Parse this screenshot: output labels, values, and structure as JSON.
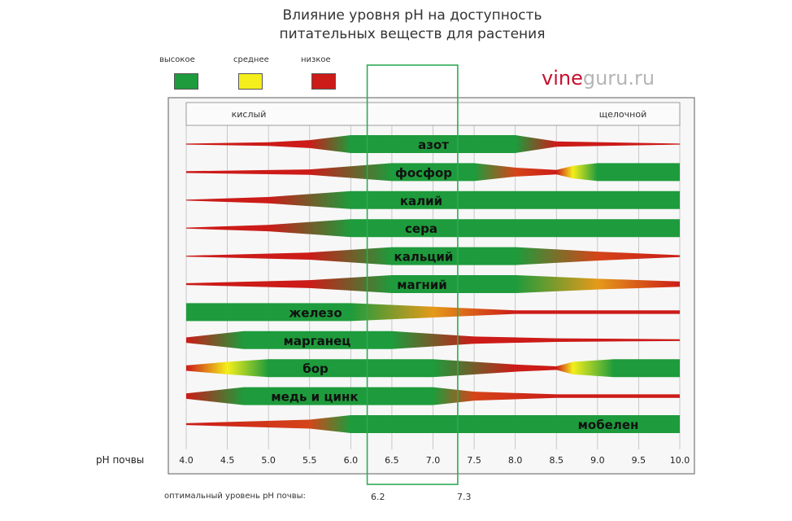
{
  "title_lines": [
    "Влияние уровня pH на доступность",
    "питательных веществ для растения"
  ],
  "watermark": {
    "part1": "vine",
    "part2": "guru.ru"
  },
  "legend": [
    {
      "label": "высокое",
      "color": "#1e9b3c"
    },
    {
      "label": "среднее",
      "color": "#f4ee1c"
    },
    {
      "label": "низкое",
      "color": "#cc1b18"
    }
  ],
  "optimum": {
    "label": "оптимальный уровень pH почвы:",
    "low_label": "6.2",
    "high_label": "7.3"
  },
  "chart_data": {
    "type": "band",
    "xlabel": "pH почвы",
    "x_ticks": [
      "4.0",
      "4.5",
      "5.0",
      "5.5",
      "6.0",
      "6.5",
      "7.0",
      "7.5",
      "8.0",
      "8.5",
      "9.0",
      "9.5",
      "10.0"
    ],
    "xlim": [
      4.0,
      10.0
    ],
    "zones": {
      "left": "кислый",
      "right": "щелочной"
    },
    "optimal_range": [
      6.2,
      7.3
    ],
    "colors": {
      "high": "#1e9b3c",
      "medium": "#f4ee1c",
      "low": "#cc1b18"
    },
    "series": [
      {
        "name": "азот",
        "profile": [
          [
            4.0,
            0.05
          ],
          [
            5.0,
            0.2
          ],
          [
            5.5,
            0.45
          ],
          [
            6.0,
            1
          ],
          [
            8.0,
            1
          ],
          [
            8.5,
            0.3
          ],
          [
            10.0,
            0.05
          ]
        ]
      },
      {
        "name": "фосфор",
        "profile": [
          [
            4.0,
            0.1
          ],
          [
            5.5,
            0.3
          ],
          [
            6.5,
            1
          ],
          [
            7.5,
            1
          ],
          [
            8.0,
            0.5
          ],
          [
            8.5,
            0.25
          ],
          [
            8.7,
            0.7
          ],
          [
            9.0,
            1
          ],
          [
            10.0,
            1
          ]
        ]
      },
      {
        "name": "калий",
        "profile": [
          [
            4.0,
            0.05
          ],
          [
            5.0,
            0.35
          ],
          [
            6.0,
            1
          ],
          [
            10.0,
            1
          ]
        ]
      },
      {
        "name": "сера",
        "profile": [
          [
            4.0,
            0.05
          ],
          [
            5.0,
            0.35
          ],
          [
            6.0,
            1
          ],
          [
            10.0,
            1
          ]
        ]
      },
      {
        "name": "кальций",
        "profile": [
          [
            4.0,
            0.05
          ],
          [
            5.5,
            0.4
          ],
          [
            6.5,
            1
          ],
          [
            8.0,
            1
          ],
          [
            9.0,
            0.5
          ],
          [
            10.0,
            0.1
          ]
        ]
      },
      {
        "name": "магний",
        "profile": [
          [
            4.0,
            0.1
          ],
          [
            5.5,
            0.45
          ],
          [
            6.5,
            1
          ],
          [
            8.0,
            1
          ],
          [
            9.0,
            0.6
          ],
          [
            10.0,
            0.3
          ]
        ]
      },
      {
        "name": "железо",
        "profile": [
          [
            4.0,
            1
          ],
          [
            6.0,
            1
          ],
          [
            7.0,
            0.6
          ],
          [
            8.0,
            0.2
          ],
          [
            10.0,
            0.2
          ]
        ]
      },
      {
        "name": "марганец",
        "profile": [
          [
            4.0,
            0.3
          ],
          [
            4.7,
            1
          ],
          [
            6.5,
            1
          ],
          [
            7.5,
            0.4
          ],
          [
            8.5,
            0.2
          ],
          [
            10.0,
            0.1
          ]
        ]
      },
      {
        "name": "бор",
        "profile": [
          [
            4.0,
            0.3
          ],
          [
            4.5,
            0.7
          ],
          [
            5.0,
            1
          ],
          [
            7.0,
            1
          ],
          [
            8.0,
            0.4
          ],
          [
            8.5,
            0.2
          ],
          [
            8.7,
            0.7
          ],
          [
            9.2,
            1
          ],
          [
            10.0,
            1
          ]
        ]
      },
      {
        "name": "медь и цинк",
        "profile": [
          [
            4.0,
            0.3
          ],
          [
            4.7,
            1
          ],
          [
            7.0,
            1
          ],
          [
            7.5,
            0.5
          ],
          [
            8.5,
            0.2
          ],
          [
            10.0,
            0.2
          ]
        ]
      },
      {
        "name": "мобелен",
        "profile": [
          [
            4.0,
            0.1
          ],
          [
            5.5,
            0.5
          ],
          [
            6.0,
            1
          ],
          [
            10.0,
            1
          ]
        ]
      }
    ]
  }
}
